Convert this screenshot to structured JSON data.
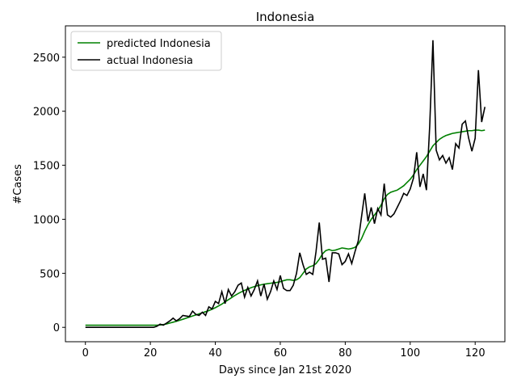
{
  "chart_data": {
    "type": "line",
    "title": "Indonesia",
    "xlabel": "Days since Jan 21st 2020",
    "ylabel": "#Cases",
    "x": [
      0,
      1,
      2,
      3,
      4,
      5,
      6,
      7,
      8,
      9,
      10,
      11,
      12,
      13,
      14,
      15,
      16,
      17,
      18,
      19,
      20,
      21,
      22,
      23,
      24,
      25,
      26,
      27,
      28,
      29,
      30,
      31,
      32,
      33,
      34,
      35,
      36,
      37,
      38,
      39,
      40,
      41,
      42,
      43,
      44,
      45,
      46,
      47,
      48,
      49,
      50,
      51,
      52,
      53,
      54,
      55,
      56,
      57,
      58,
      59,
      60,
      61,
      62,
      63,
      64,
      65,
      66,
      67,
      68,
      69,
      70,
      71,
      72,
      73,
      74,
      75,
      76,
      77,
      78,
      79,
      80,
      81,
      82,
      83,
      84,
      85,
      86,
      87,
      88,
      89,
      90,
      91,
      92,
      93,
      94,
      95,
      96,
      97,
      98,
      99,
      100,
      101,
      102,
      103,
      104,
      105,
      106,
      107,
      108,
      109,
      110,
      111,
      112,
      113,
      114,
      115,
      116,
      117,
      118,
      119,
      120,
      121,
      122,
      123
    ],
    "series": [
      {
        "name": "predicted Indonesia",
        "color": "#008000",
        "values": [
          20,
          20,
          20,
          20,
          20,
          20,
          20,
          20,
          20,
          20,
          20,
          20,
          20,
          20,
          20,
          20,
          20,
          20,
          20,
          20,
          20,
          20,
          20,
          22,
          26,
          32,
          40,
          48,
          56,
          65,
          75,
          85,
          95,
          105,
          115,
          125,
          135,
          145,
          155,
          168,
          182,
          198,
          215,
          235,
          255,
          275,
          295,
          312,
          328,
          342,
          355,
          367,
          377,
          386,
          393,
          399,
          404,
          408,
          412,
          416,
          422,
          432,
          440,
          440,
          435,
          440,
          460,
          500,
          540,
          560,
          570,
          590,
          630,
          680,
          710,
          720,
          710,
          715,
          725,
          735,
          730,
          725,
          730,
          740,
          770,
          820,
          890,
          950,
          1000,
          1040,
          1080,
          1130,
          1190,
          1230,
          1250,
          1260,
          1270,
          1290,
          1310,
          1340,
          1370,
          1410,
          1460,
          1500,
          1540,
          1580,
          1630,
          1680,
          1710,
          1740,
          1760,
          1775,
          1785,
          1795,
          1800,
          1805,
          1810,
          1815,
          1820,
          1820,
          1825,
          1825,
          1820,
          1825
        ]
      },
      {
        "name": "actual Indonesia",
        "color": "#000000",
        "values": [
          0,
          0,
          0,
          0,
          0,
          0,
          0,
          0,
          0,
          0,
          0,
          0,
          0,
          0,
          0,
          0,
          0,
          0,
          0,
          0,
          0,
          0,
          10,
          30,
          20,
          40,
          60,
          85,
          60,
          80,
          110,
          105,
          100,
          150,
          120,
          110,
          140,
          110,
          190,
          170,
          240,
          220,
          330,
          220,
          350,
          290,
          330,
          390,
          410,
          280,
          370,
          290,
          350,
          430,
          290,
          400,
          260,
          330,
          430,
          350,
          480,
          360,
          340,
          340,
          390,
          500,
          690,
          580,
          490,
          510,
          490,
          700,
          970,
          630,
          640,
          420,
          690,
          690,
          680,
          580,
          610,
          680,
          590,
          700,
          800,
          1020,
          1240,
          980,
          1110,
          960,
          1100,
          1040,
          1330,
          1040,
          1020,
          1050,
          1110,
          1170,
          1240,
          1220,
          1280,
          1380,
          1620,
          1300,
          1420,
          1270,
          1860,
          2657,
          1640,
          1550,
          1590,
          1520,
          1570,
          1460,
          1700,
          1660,
          1880,
          1910,
          1750,
          1630,
          1750,
          2380,
          1900,
          2040
        ]
      }
    ],
    "xlim": [
      -6.15,
      129.15
    ],
    "ylim": [
      -133,
      2790
    ],
    "xticks": [
      0,
      20,
      40,
      60,
      80,
      100,
      120
    ],
    "yticks": [
      0,
      500,
      1000,
      1500,
      2000,
      2500
    ],
    "legend": "upper left"
  }
}
